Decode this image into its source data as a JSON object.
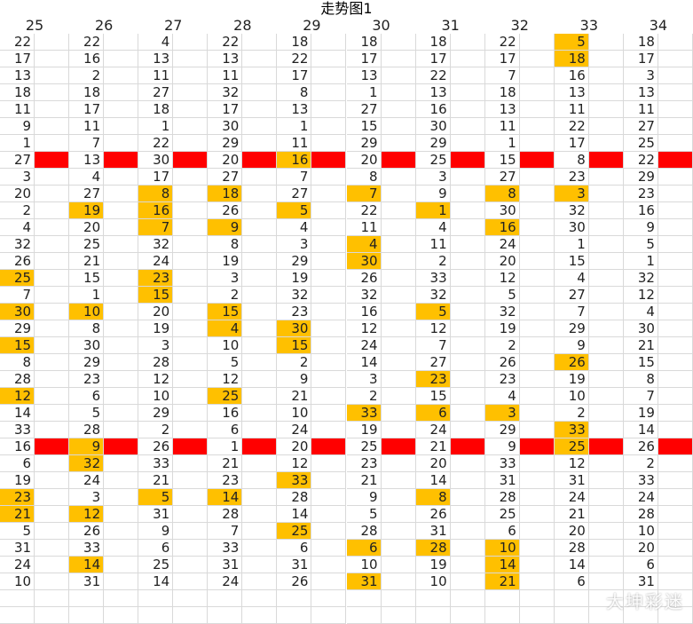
{
  "header": {
    "title": "走势图1",
    "columns": [
      "25",
      "26",
      "27",
      "28",
      "29",
      "30",
      "31",
      "32",
      "33",
      "34"
    ]
  },
  "table": {
    "rows": [
      [
        22,
        22,
        4,
        22,
        18,
        18,
        18,
        22,
        5,
        18
      ],
      [
        17,
        16,
        13,
        13,
        22,
        17,
        17,
        17,
        18,
        17
      ],
      [
        13,
        2,
        11,
        11,
        17,
        13,
        22,
        7,
        16,
        3
      ],
      [
        18,
        18,
        27,
        32,
        8,
        1,
        13,
        18,
        13,
        13
      ],
      [
        11,
        17,
        18,
        17,
        13,
        27,
        16,
        13,
        11,
        11
      ],
      [
        9,
        11,
        1,
        30,
        1,
        15,
        30,
        11,
        22,
        27
      ],
      [
        1,
        7,
        22,
        29,
        11,
        29,
        29,
        1,
        17,
        25
      ],
      [
        27,
        13,
        30,
        20,
        16,
        20,
        25,
        15,
        8,
        22
      ],
      [
        3,
        4,
        17,
        27,
        7,
        8,
        3,
        27,
        23,
        29
      ],
      [
        20,
        27,
        8,
        18,
        27,
        7,
        9,
        8,
        3,
        23
      ],
      [
        2,
        19,
        16,
        26,
        5,
        22,
        1,
        30,
        32,
        16
      ],
      [
        4,
        20,
        7,
        9,
        4,
        11,
        4,
        16,
        30,
        9
      ],
      [
        32,
        25,
        32,
        8,
        3,
        4,
        11,
        24,
        1,
        5
      ],
      [
        26,
        21,
        24,
        19,
        29,
        30,
        2,
        20,
        15,
        1
      ],
      [
        25,
        15,
        23,
        3,
        19,
        26,
        33,
        12,
        4,
        32
      ],
      [
        7,
        1,
        15,
        2,
        32,
        32,
        32,
        5,
        27,
        12
      ],
      [
        30,
        10,
        20,
        15,
        23,
        16,
        5,
        32,
        7,
        4
      ],
      [
        29,
        8,
        19,
        4,
        30,
        12,
        12,
        19,
        29,
        30
      ],
      [
        15,
        30,
        3,
        10,
        15,
        24,
        7,
        2,
        9,
        21
      ],
      [
        8,
        29,
        28,
        5,
        2,
        14,
        27,
        26,
        26,
        15
      ],
      [
        28,
        23,
        12,
        12,
        9,
        3,
        23,
        23,
        19,
        8
      ],
      [
        12,
        6,
        10,
        25,
        21,
        2,
        15,
        4,
        10,
        7
      ],
      [
        14,
        5,
        29,
        16,
        10,
        33,
        6,
        3,
        2,
        19
      ],
      [
        33,
        28,
        2,
        6,
        24,
        19,
        24,
        29,
        33,
        14
      ],
      [
        16,
        9,
        26,
        1,
        20,
        25,
        21,
        9,
        25,
        26
      ],
      [
        6,
        32,
        33,
        21,
        12,
        23,
        20,
        33,
        12,
        2
      ],
      [
        19,
        24,
        21,
        23,
        33,
        21,
        14,
        31,
        31,
        33
      ],
      [
        23,
        3,
        5,
        14,
        28,
        9,
        8,
        28,
        24,
        24
      ],
      [
        21,
        12,
        31,
        28,
        14,
        5,
        26,
        25,
        21,
        28
      ],
      [
        5,
        26,
        9,
        7,
        25,
        28,
        31,
        6,
        20,
        10
      ],
      [
        31,
        33,
        6,
        33,
        6,
        6,
        28,
        10,
        28,
        20
      ],
      [
        24,
        14,
        25,
        31,
        31,
        10,
        19,
        14,
        14,
        6
      ],
      [
        10,
        31,
        14,
        24,
        26,
        31,
        10,
        21,
        6,
        31
      ]
    ],
    "highlights": [
      [
        8
      ],
      [
        8
      ],
      [],
      [],
      [],
      [],
      [],
      [
        4
      ],
      [],
      [
        2,
        3,
        5,
        7,
        8
      ],
      [
        1,
        2,
        4,
        6
      ],
      [
        2,
        3,
        7
      ],
      [
        5
      ],
      [
        5
      ],
      [
        0,
        2
      ],
      [
        2
      ],
      [
        0,
        1,
        3,
        6
      ],
      [
        3,
        4
      ],
      [
        0,
        4
      ],
      [
        8
      ],
      [
        6
      ],
      [
        0,
        3
      ],
      [
        5,
        6,
        7
      ],
      [
        8
      ],
      [
        1,
        8
      ],
      [
        1
      ],
      [
        4
      ],
      [
        0,
        2,
        3,
        6
      ],
      [
        0,
        1
      ],
      [
        4
      ],
      [
        5,
        6,
        7
      ],
      [
        1,
        7
      ],
      [
        5,
        7
      ]
    ],
    "marker_rows": [
      7,
      24
    ],
    "highlight_color": "#ffc000",
    "marker_color": "#ff0000"
  },
  "watermark": "大坤彩迷"
}
